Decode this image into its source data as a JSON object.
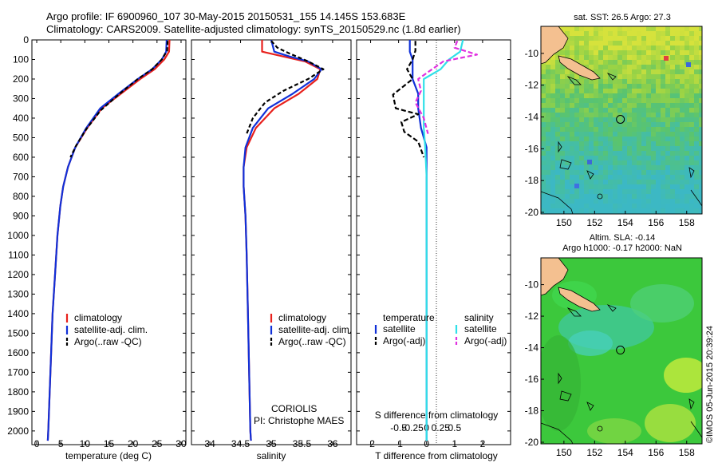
{
  "header": {
    "line1": "Argo profile: IF 6900960_107 30-May-2015 20150531_155 14.145S 153.683E",
    "line2": "Climatology: CARS2009. Satellite-adjusted climatology: synTS_20150529.nc (1.8d earlier)"
  },
  "stamp": "©IMOS 05-Jun-2015 20:39:24",
  "colors": {
    "climatology": "#e8201c",
    "satellite": "#1030d8",
    "argo": "#000000",
    "salinity_satellite": "#30e0e8",
    "salinity_argo": "#e030e0"
  },
  "chart_data": [
    {
      "type": "line",
      "xlabel": "temperature (deg C)",
      "ylabel": "",
      "xlim": [
        -1,
        31
      ],
      "ylim": [
        2070,
        0
      ],
      "xticks": [
        0,
        5,
        10,
        15,
        20,
        25,
        30
      ],
      "yticks": [
        0,
        100,
        200,
        300,
        400,
        500,
        600,
        700,
        800,
        900,
        1000,
        1100,
        1200,
        1300,
        1400,
        1500,
        1600,
        1700,
        1800,
        1900,
        2000
      ],
      "legend": [
        "climatology",
        "satellite-adj. clim.",
        "Argo(..raw -QC)"
      ],
      "legend_position": "lower-left",
      "series": [
        {
          "name": "climatology",
          "color": "#e8201c",
          "dash": "",
          "points": [
            [
              27.6,
              0
            ],
            [
              27.5,
              60
            ],
            [
              26.5,
              100
            ],
            [
              24.5,
              150
            ],
            [
              21.5,
              200
            ],
            [
              17.5,
              275
            ],
            [
              13.5,
              350
            ],
            [
              10.5,
              450
            ],
            [
              8.0,
              550
            ],
            [
              6.5,
              650
            ],
            [
              5.5,
              750
            ],
            [
              4.9,
              850
            ],
            [
              4.3,
              1000
            ],
            [
              3.8,
              1200
            ],
            [
              3.3,
              1400
            ],
            [
              3.0,
              1600
            ],
            [
              2.7,
              1800
            ],
            [
              2.4,
              2000
            ],
            [
              2.3,
              2050
            ]
          ]
        },
        {
          "name": "satellite-adj. clim.",
          "color": "#1030d8",
          "dash": "",
          "points": [
            [
              27.0,
              0
            ],
            [
              26.9,
              60
            ],
            [
              26.0,
              100
            ],
            [
              24.0,
              150
            ],
            [
              21.0,
              200
            ],
            [
              17.0,
              275
            ],
            [
              13.2,
              350
            ],
            [
              10.3,
              450
            ],
            [
              8.0,
              550
            ],
            [
              6.5,
              650
            ],
            [
              5.5,
              750
            ],
            [
              4.9,
              850
            ],
            [
              4.3,
              1000
            ],
            [
              3.8,
              1200
            ],
            [
              3.3,
              1400
            ],
            [
              3.0,
              1600
            ],
            [
              2.7,
              1800
            ],
            [
              2.4,
              2000
            ],
            [
              2.3,
              2050
            ]
          ]
        },
        {
          "name": "Argo(..raw -QC)",
          "color": "#000000",
          "dash": "5,3",
          "points": [
            [
              27.2,
              5
            ],
            [
              27.1,
              55
            ],
            [
              26.0,
              100
            ],
            [
              24.0,
              150
            ],
            [
              21.0,
              200
            ],
            [
              17.0,
              280
            ],
            [
              13.3,
              360
            ],
            [
              10.2,
              460
            ],
            [
              8.2,
              540
            ],
            [
              7.0,
              600
            ]
          ]
        }
      ]
    },
    {
      "type": "line",
      "xlabel": "salinity",
      "ylabel": "",
      "xlim": [
        33.7,
        36.3
      ],
      "ylim": [
        2070,
        0
      ],
      "xticks": [
        34,
        34.5,
        35,
        35.5,
        36
      ],
      "xticklabels": [
        "34",
        "34.5",
        "35",
        "35.5",
        "36"
      ],
      "legend": [
        "climatology",
        "satellite-adj. clim.",
        "Argo(..raw -QC)"
      ],
      "legend_position": "lower-right",
      "annotation": [
        "CORIOLIS",
        "PI: Christophe MAES"
      ],
      "series": [
        {
          "name": "climatology",
          "color": "#e8201c",
          "dash": "",
          "points": [
            [
              34.85,
              0
            ],
            [
              34.85,
              60
            ],
            [
              35.2,
              85
            ],
            [
              35.55,
              110
            ],
            [
              35.8,
              150
            ],
            [
              35.75,
              200
            ],
            [
              35.45,
              275
            ],
            [
              35.05,
              350
            ],
            [
              34.75,
              450
            ],
            [
              34.6,
              550
            ],
            [
              34.55,
              650
            ],
            [
              34.55,
              750
            ],
            [
              34.58,
              900
            ],
            [
              34.6,
              1100
            ],
            [
              34.62,
              1400
            ],
            [
              34.64,
              1700
            ],
            [
              34.66,
              2000
            ],
            [
              34.67,
              2050
            ]
          ]
        },
        {
          "name": "satellite-adj. clim.",
          "color": "#1030d8",
          "dash": "",
          "points": [
            [
              35.0,
              0
            ],
            [
              35.05,
              60
            ],
            [
              35.3,
              85
            ],
            [
              35.6,
              110
            ],
            [
              35.82,
              150
            ],
            [
              35.7,
              200
            ],
            [
              35.35,
              275
            ],
            [
              34.95,
              350
            ],
            [
              34.7,
              450
            ],
            [
              34.58,
              550
            ],
            [
              34.55,
              650
            ],
            [
              34.55,
              750
            ],
            [
              34.58,
              900
            ],
            [
              34.6,
              1100
            ],
            [
              34.62,
              1400
            ],
            [
              34.64,
              1700
            ],
            [
              34.66,
              2000
            ],
            [
              34.67,
              2050
            ]
          ]
        },
        {
          "name": "Argo(..raw -QC)",
          "color": "#000000",
          "dash": "5,3",
          "points": [
            [
              35.0,
              5
            ],
            [
              35.1,
              40
            ],
            [
              35.3,
              70
            ],
            [
              35.6,
              110
            ],
            [
              35.85,
              150
            ],
            [
              35.6,
              200
            ],
            [
              35.2,
              260
            ],
            [
              34.9,
              320
            ],
            [
              34.7,
              400
            ],
            [
              34.6,
              480
            ]
          ]
        }
      ]
    },
    {
      "type": "line",
      "xlabel": "T difference from climatology",
      "title_bottom": "S difference from climatology",
      "ylabel": "",
      "xlim": [
        -2.5,
        3.0
      ],
      "ylim": [
        2070,
        0
      ],
      "xticks": [
        -2,
        -1,
        0,
        1,
        2
      ],
      "s_ticks": [
        -0.5,
        -0.25,
        0,
        0.25,
        0.5
      ],
      "s_ticklabels": [
        "-0.5",
        "-0.25",
        "0",
        "0.25",
        "0.5"
      ],
      "legend_temperature": [
        "temperature",
        "satellite",
        "Argo(-adj)"
      ],
      "legend_salinity": [
        "salinity",
        "satellite",
        "Argo(-adj)"
      ],
      "legend_position": "lower-left and lower-right",
      "series": [
        {
          "name": "satellite",
          "group": "temperature",
          "color": "#1030d8",
          "dash": "",
          "points": [
            [
              -0.6,
              0
            ],
            [
              -0.6,
              60
            ],
            [
              -0.5,
              100
            ],
            [
              -0.5,
              150
            ],
            [
              -0.5,
              200
            ],
            [
              -0.3,
              275
            ],
            [
              -0.3,
              350
            ],
            [
              -0.2,
              450
            ],
            [
              0,
              550
            ],
            [
              0,
              2050
            ]
          ]
        },
        {
          "name": "Argo(-adj)",
          "group": "temperature",
          "color": "#000000",
          "dash": "6,3",
          "points": [
            [
              -0.4,
              5
            ],
            [
              -0.4,
              55
            ],
            [
              -0.5,
              100
            ],
            [
              -0.7,
              150
            ],
            [
              -0.5,
              200
            ],
            [
              -1.2,
              280
            ],
            [
              -1.1,
              350
            ],
            [
              -0.3,
              380
            ],
            [
              -0.9,
              420
            ],
            [
              -0.8,
              470
            ],
            [
              -0.3,
              520
            ],
            [
              -0.1,
              600
            ]
          ]
        },
        {
          "name": "satellite",
          "group": "salinity",
          "color": "#30e0e8",
          "dash": "",
          "points": [
            [
              1.3,
              0
            ],
            [
              1.2,
              60
            ],
            [
              0.8,
              100
            ],
            [
              0.5,
              150
            ],
            [
              -0.1,
              200
            ],
            [
              -0.1,
              275
            ],
            [
              -0.1,
              350
            ],
            [
              -0.1,
              450
            ],
            [
              -0.05,
              550
            ],
            [
              0,
              700
            ],
            [
              0,
              2050
            ]
          ]
        },
        {
          "name": "Argo(-adj)",
          "group": "salinity",
          "color": "#e030e0",
          "dash": "6,3",
          "points": [
            [
              1.1,
              5
            ],
            [
              1.0,
              40
            ],
            [
              1.8,
              75
            ],
            [
              0.6,
              110
            ],
            [
              0.2,
              150
            ],
            [
              -0.3,
              200
            ],
            [
              -0.2,
              260
            ],
            [
              -0.4,
              320
            ],
            [
              -0.1,
              400
            ],
            [
              0.05,
              480
            ]
          ]
        }
      ]
    }
  ],
  "maps": [
    {
      "title": "sat. SST: 26.5 Argo: 27.3",
      "lon_ticks": [
        150,
        152,
        154,
        156,
        158
      ],
      "lat_ticks": [
        "-10",
        "-12",
        "-14",
        "-16",
        "-18",
        "-20"
      ],
      "lon_range": [
        148.5,
        159.0
      ],
      "lat_range": [
        -20.1,
        -8.3
      ],
      "profile_marker": [
        153.68,
        -14.15
      ],
      "style": "pixel"
    },
    {
      "title_line1": "Altim. SLA: -0.14",
      "title_line2": "Argo h1000: -0.17 h2000: NaN",
      "lon_ticks": [
        150,
        152,
        154,
        156,
        158
      ],
      "lat_ticks": [
        "-10",
        "-12",
        "-14",
        "-16",
        "-18",
        "-20"
      ],
      "lon_range": [
        148.5,
        159.0
      ],
      "lat_range": [
        -20.1,
        -8.3
      ],
      "profile_marker": [
        153.68,
        -14.15
      ],
      "style": "smooth"
    }
  ]
}
